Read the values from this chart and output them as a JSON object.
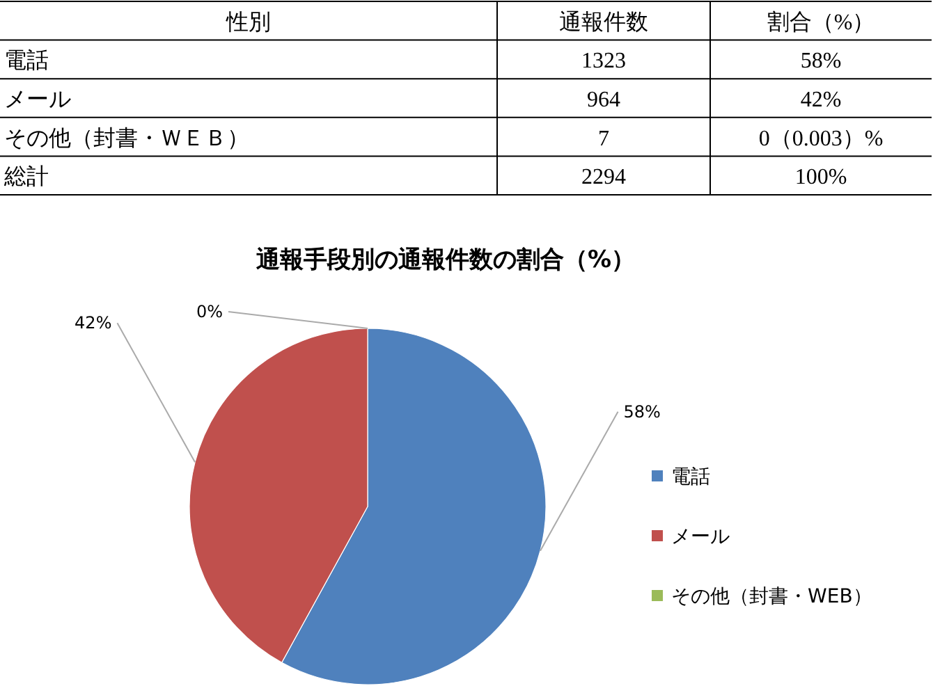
{
  "chart_data": [
    {
      "type": "other",
      "annotations": [
        "性別",
        "通報件数",
        "割合（%）",
        "電話",
        "1323",
        "58%",
        "メール",
        "964",
        "42%",
        "その他（封書・ＷＥＢ）",
        "7",
        "0（0.003）%",
        "総計",
        "2294",
        "100%"
      ]
    },
    {
      "type": "pie",
      "title": "通報手段別の通報件数の割合（%）",
      "categories": [
        "電話",
        "メール",
        "その他（封書・WEB）"
      ],
      "values": [
        58,
        42,
        0
      ],
      "value_labels": [
        "58%",
        "42%",
        "0%"
      ],
      "colors": [
        "#4f81bd",
        "#c0504d",
        "#9bbb59"
      ],
      "legend": "right"
    }
  ]
}
